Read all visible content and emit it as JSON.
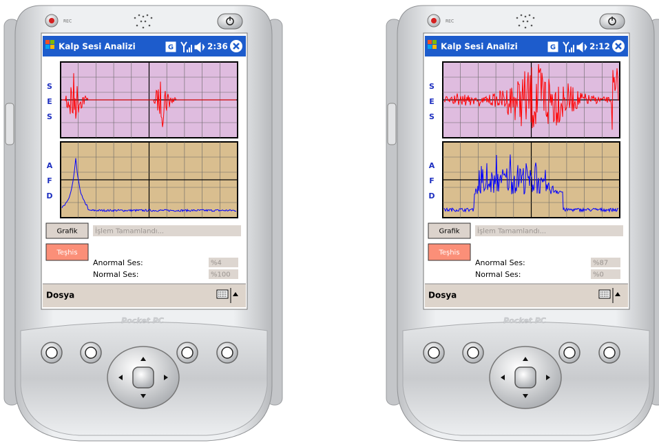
{
  "devices": [
    {
      "rec": "REC",
      "title": "Kalp Sesi Analizi",
      "g_icon": "G",
      "time": "2:36",
      "ses_label": [
        "S",
        "E",
        "S"
      ],
      "afd_label": [
        "A",
        "F",
        "D"
      ],
      "grafik_button": "Grafik",
      "status": "İşlem Tamamlandı...",
      "teshis_button": "Teşhis",
      "abnormal_label": "Anormal Ses:",
      "abnormal_value": "%4",
      "normal_label": "Normal Ses:",
      "normal_value": "%100",
      "menu": "Dosya",
      "brand": "Pocket PC"
    },
    {
      "rec": "REC",
      "title": "Kalp Sesi Analizi",
      "g_icon": "G",
      "time": "2:12",
      "ses_label": [
        "S",
        "E",
        "S"
      ],
      "afd_label": [
        "A",
        "F",
        "D"
      ],
      "grafik_button": "Grafik",
      "status": "İşlem Tamamlandı...",
      "teshis_button": "Teşhis",
      "abnormal_label": "Anormal Ses:",
      "abnormal_value": "%87",
      "normal_label": "Normal Ses:",
      "normal_value": "%0",
      "menu": "Dosya",
      "brand": "Pocket PC"
    }
  ]
}
